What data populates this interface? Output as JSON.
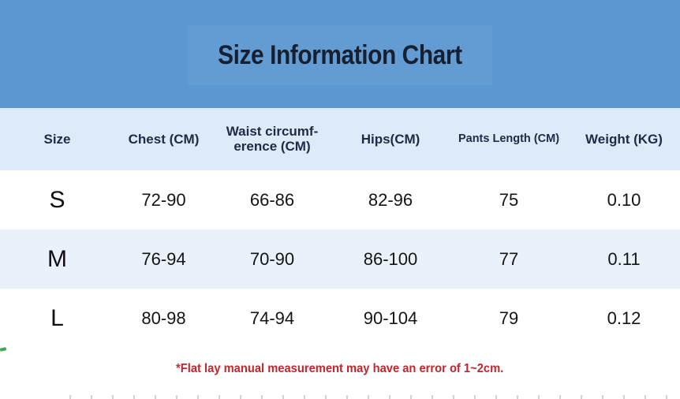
{
  "banner": {
    "title": "Size Information Chart",
    "bg_color": "#5b97d1",
    "title_color": "#162030"
  },
  "table": {
    "header_bg": "#dcebf7",
    "stripe_bg": "#e9f2fb",
    "columns": [
      {
        "label": "Size"
      },
      {
        "label": "Chest (CM)"
      },
      {
        "label": "Waist circumf-\nerence (CM)"
      },
      {
        "label": "Hips(CM)"
      },
      {
        "label": "Pants Length (CM)"
      },
      {
        "label": "Weight (KG)"
      }
    ],
    "rows": [
      [
        "S",
        "72-90",
        "66-86",
        "82-96",
        "75",
        "0.10"
      ],
      [
        "M",
        "76-94",
        "70-90",
        "86-100",
        "77",
        "0.11"
      ],
      [
        "L",
        "80-98",
        "74-94",
        "90-104",
        "79",
        "0.12"
      ]
    ]
  },
  "footnote": {
    "text": "*Flat lay manual measurement may have an error of 1~2cm.",
    "color": "#c0272d"
  },
  "chart_data": {
    "type": "table",
    "title": "Size Information Chart",
    "columns": [
      "Size",
      "Chest (CM)",
      "Waist circumference (CM)",
      "Hips(CM)",
      "Pants Length (CM)",
      "Weight (KG)"
    ],
    "rows": [
      [
        "S",
        "72-90",
        "66-86",
        "82-96",
        "75",
        "0.10"
      ],
      [
        "M",
        "76-94",
        "70-90",
        "86-100",
        "77",
        "0.11"
      ],
      [
        "L",
        "80-98",
        "74-94",
        "90-104",
        "79",
        "0.12"
      ]
    ],
    "footnote": "*Flat lay manual measurement may have an error of 1~2cm."
  }
}
